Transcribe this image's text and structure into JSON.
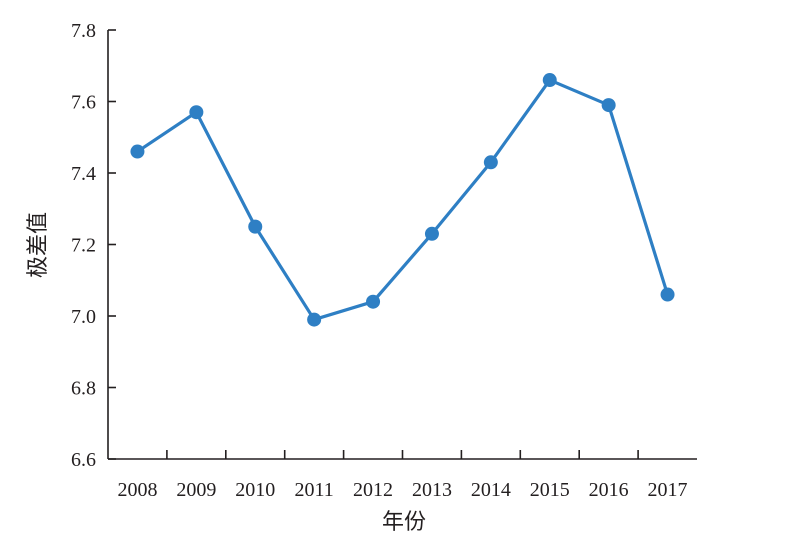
{
  "chart_data": {
    "type": "line",
    "title": "",
    "xlabel": "年份",
    "ylabel": "极差值",
    "categories": [
      "2008",
      "2009",
      "2010",
      "2011",
      "2012",
      "2013",
      "2014",
      "2015",
      "2016",
      "2017"
    ],
    "series": [
      {
        "values": [
          7.46,
          7.57,
          7.25,
          6.99,
          7.04,
          7.23,
          7.43,
          7.66,
          7.59,
          7.06
        ]
      }
    ],
    "ylim": [
      6.6,
      7.8
    ],
    "yticks": [
      "6.6",
      "6.8",
      "7.0",
      "7.2",
      "7.4",
      "7.6",
      "7.8"
    ],
    "grid": false,
    "legend": "none",
    "colors": {
      "line": "#2e7fc4",
      "axis": "#231f20",
      "text": "#231f20"
    }
  }
}
